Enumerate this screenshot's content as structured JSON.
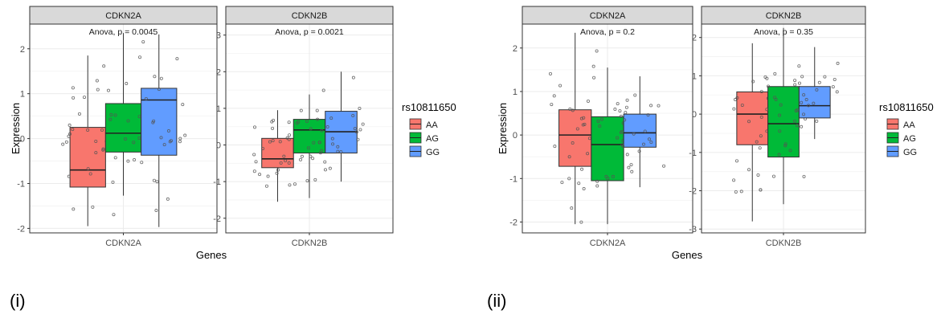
{
  "captions": [
    "(i)",
    "(ii)"
  ],
  "colors": {
    "AA": "#F8766D",
    "AG": "#00BA38",
    "GG": "#619CFF",
    "strip": "#D9D9D9",
    "grid": "#EBEBEB",
    "point": "#555555"
  },
  "chart_data": [
    {
      "type": "boxplot",
      "facets": [
        {
          "title": "CDKN2A",
          "xtick": "CDKN2A",
          "annotation": "Anova, p = 0.0045",
          "yticks": [
            -2,
            -1,
            0,
            1,
            2
          ],
          "ylim": [
            -2.1,
            2.55
          ],
          "boxes": [
            {
              "group": "AA",
              "q1": -1.08,
              "median": -0.7,
              "q3": 0.25,
              "whisker_low": -1.95,
              "whisker_high": 1.85
            },
            {
              "group": "AG",
              "q1": -0.3,
              "median": 0.12,
              "q3": 0.78,
              "whisker_low": -1.27,
              "whisker_high": 2.35
            },
            {
              "group": "GG",
              "q1": -0.37,
              "median": 0.86,
              "q3": 1.12,
              "whisker_low": -1.97,
              "whisker_high": 2.32
            }
          ]
        },
        {
          "title": "CDKN2B",
          "xtick": "CDKN2B",
          "annotation": "Anova, p = 0.0021",
          "yticks": [
            -2,
            -1,
            0,
            1,
            2,
            3
          ],
          "ylim": [
            -2.4,
            3.3
          ],
          "boxes": [
            {
              "group": "AA",
              "q1": -0.62,
              "median": -0.38,
              "q3": 0.18,
              "whisker_low": -1.55,
              "whisker_high": 0.95
            },
            {
              "group": "AG",
              "q1": -0.22,
              "median": 0.41,
              "q3": 0.7,
              "whisker_low": -1.45,
              "whisker_high": 1.38
            },
            {
              "group": "GG",
              "q1": -0.22,
              "median": 0.36,
              "q3": 0.92,
              "whisker_low": -1.0,
              "whisker_high": 2.0
            }
          ]
        }
      ],
      "xlabel": "Genes",
      "ylabel": "Expression",
      "legend": {
        "title": "rs10811650",
        "entries": [
          "AA",
          "AG",
          "GG"
        ]
      }
    },
    {
      "type": "boxplot",
      "facets": [
        {
          "title": "CDKN2A",
          "xtick": "CDKN2A",
          "annotation": "Anova, p = 0.2",
          "yticks": [
            -2,
            -1,
            0,
            1,
            2
          ],
          "ylim": [
            -2.25,
            2.55
          ],
          "boxes": [
            {
              "group": "AA",
              "q1": -0.72,
              "median": 0.0,
              "q3": 0.58,
              "whisker_low": -2.05,
              "whisker_high": 2.35
            },
            {
              "group": "AG",
              "q1": -1.05,
              "median": -0.22,
              "q3": 0.42,
              "whisker_low": -2.05,
              "whisker_high": 1.55
            },
            {
              "group": "GG",
              "q1": -0.28,
              "median": 0.05,
              "q3": 0.48,
              "whisker_low": -1.2,
              "whisker_high": 1.35
            }
          ]
        },
        {
          "title": "CDKN2B",
          "xtick": "CDKN2B",
          "annotation": "Anova, p = 0.35",
          "yticks": [
            -3,
            -2,
            -1,
            0,
            1,
            2
          ],
          "ylim": [
            -3.1,
            2.35
          ],
          "boxes": [
            {
              "group": "AA",
              "q1": -0.8,
              "median": 0.0,
              "q3": 0.58,
              "whisker_low": -2.8,
              "whisker_high": 1.85
            },
            {
              "group": "AG",
              "q1": -1.12,
              "median": -0.25,
              "q3": 0.72,
              "whisker_low": -2.35,
              "whisker_high": 2.25
            },
            {
              "group": "GG",
              "q1": -0.1,
              "median": 0.22,
              "q3": 0.72,
              "whisker_low": -0.65,
              "whisker_high": 1.75
            }
          ]
        }
      ],
      "xlabel": "Genes",
      "ylabel": "Expression",
      "legend": {
        "title": "rs10811650",
        "entries": [
          "AA",
          "AG",
          "GG"
        ]
      }
    }
  ]
}
